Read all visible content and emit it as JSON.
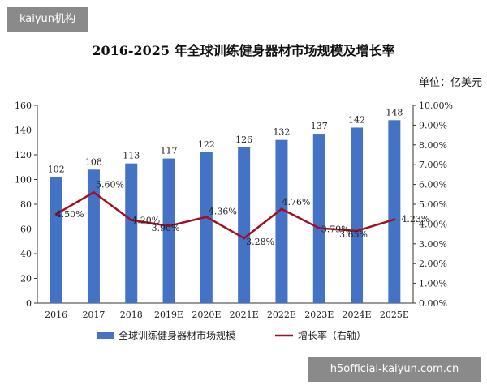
{
  "watermarks": {
    "top": "kaiyun机构",
    "bottom": "h5official-kaiyun.com.cn"
  },
  "colors": {
    "bar": "#4472c4",
    "line": "#a50e1e",
    "axis": "#333333"
  },
  "chart_data": {
    "type": "bar",
    "title": "2016-2025 年全球训练健身器材市场规模及增长率",
    "unit": "单位：亿美元",
    "categories": [
      "2016",
      "2017",
      "2018",
      "2019E",
      "2020E",
      "2021E",
      "2022E",
      "2023E",
      "2024E",
      "2025E"
    ],
    "series": [
      {
        "name": "全球训练健身器材市场规模",
        "type": "bar",
        "axis": "left",
        "values": [
          102,
          108,
          113,
          117,
          122,
          126,
          132,
          137,
          142,
          148
        ],
        "labels": [
          "102",
          "108",
          "113",
          "117",
          "122",
          "126",
          "132",
          "137",
          "142",
          "148"
        ]
      },
      {
        "name": "增长率（右轴）",
        "type": "line",
        "axis": "right",
        "values": [
          4.5,
          5.6,
          4.2,
          3.9,
          4.36,
          3.28,
          4.76,
          3.79,
          3.65,
          4.23
        ],
        "labels": [
          "4.50%",
          "5.60%",
          "4.20%",
          "3.90%",
          "4.36%",
          "3.28%",
          "4.76%",
          "3.79%",
          "3.65%",
          "4.23%"
        ]
      }
    ],
    "ylim": [
      0,
      160
    ],
    "yticks": [
      "0",
      "20",
      "40",
      "60",
      "80",
      "100",
      "120",
      "140",
      "160"
    ],
    "y2lim": [
      0,
      10
    ],
    "y2ticks": [
      "0.00%",
      "1.00%",
      "2.00%",
      "3.00%",
      "4.00%",
      "5.00%",
      "6.00%",
      "7.00%",
      "8.00%",
      "9.00%",
      "10.00%"
    ],
    "legend_position": "bottom",
    "grid": false
  }
}
